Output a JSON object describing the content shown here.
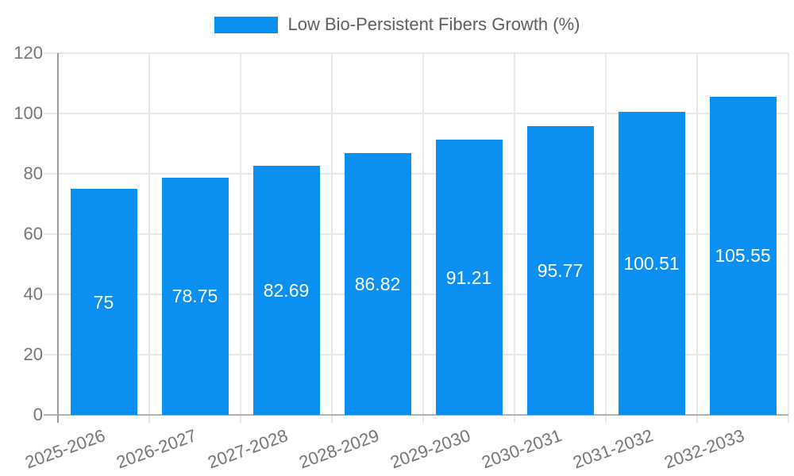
{
  "legend": {
    "label": "Low Bio-Persistent Fibers Growth (%)"
  },
  "chart_data": {
    "type": "bar",
    "title": "Low Bio-Persistent Fibers Growth (%)",
    "xlabel": "",
    "ylabel": "",
    "categories": [
      "2025-2026",
      "2026-2027",
      "2027-2028",
      "2028-2029",
      "2029-2030",
      "2030-2031",
      "2031-2032",
      "2032-2033"
    ],
    "values": [
      75,
      78.75,
      82.69,
      86.82,
      91.21,
      95.77,
      100.51,
      105.55
    ],
    "value_labels": [
      "75",
      "78.75",
      "82.69",
      "86.82",
      "91.21",
      "95.77",
      "100.51",
      "105.55"
    ],
    "ylim": [
      0,
      120
    ],
    "yticks": [
      0,
      20,
      40,
      60,
      80,
      100,
      120
    ],
    "grid": true,
    "legend_position": "top",
    "value_label_position": "inside-center",
    "x_label_rotation_deg": -20,
    "colors": {
      "bar": "#0b90f2",
      "grid": "#e7e7e7",
      "axis": "#9a9a9a",
      "tick_text": "#757575",
      "legend_text": "#5e5e5e",
      "value_text": "#ffffff",
      "background": "#ffffff"
    }
  }
}
